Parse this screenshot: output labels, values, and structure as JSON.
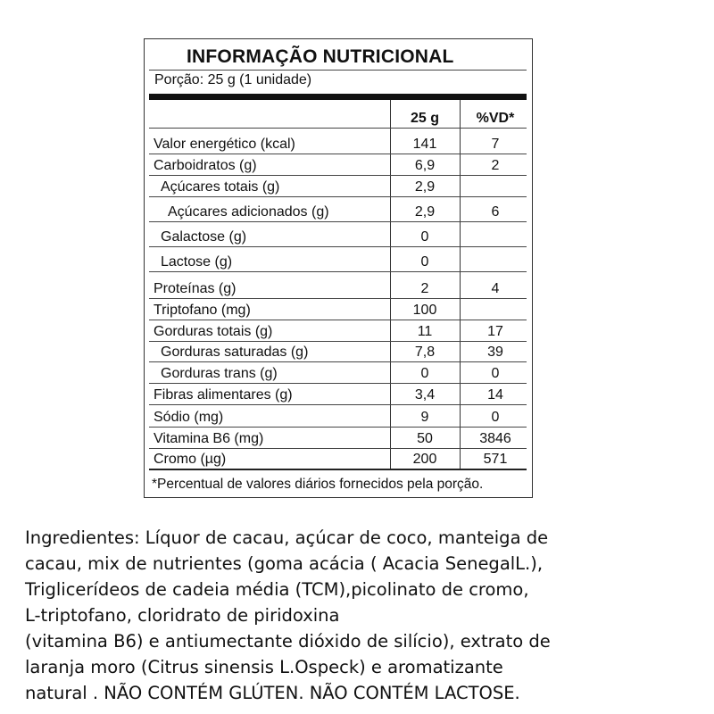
{
  "label": {
    "title": "INFORMAÇÃO NUTRICIONAL",
    "portion": "Porção: 25 g (1 unidade)",
    "header": {
      "name": "",
      "value": "25 g",
      "dv": "%VD*"
    },
    "rows": [
      {
        "name": "Valor energético (kcal)",
        "value": "141",
        "dv": "7",
        "indent": 0
      },
      {
        "name": "Carboidratos (g)",
        "value": "6,9",
        "dv": "2",
        "indent": 0
      },
      {
        "name": "Açúcares totais (g)",
        "value": "2,9",
        "dv": "",
        "indent": 1
      },
      {
        "name": "Açúcares adicionados (g)",
        "value": "2,9",
        "dv": "6",
        "indent": 2
      },
      {
        "name": "Galactose (g)",
        "value": "0",
        "dv": "",
        "indent": 1
      },
      {
        "name": "Lactose (g)",
        "value": "0",
        "dv": "",
        "indent": 1
      },
      {
        "name": "Proteínas (g)",
        "value": "2",
        "dv": "4",
        "indent": 0
      },
      {
        "name": "Triptofano (mg)",
        "value": "100",
        "dv": "",
        "indent": 0
      },
      {
        "name": "Gorduras totais (g)",
        "value": "11",
        "dv": "17",
        "indent": 0
      },
      {
        "name": "Gorduras saturadas (g)",
        "value": "7,8",
        "dv": "39",
        "indent": 1
      },
      {
        "name": "Gorduras trans (g)",
        "value": "0",
        "dv": "0",
        "indent": 1
      },
      {
        "name": "Fibras alimentares (g)",
        "value": "3,4",
        "dv": "14",
        "indent": 0
      },
      {
        "name": "Sódio (mg)",
        "value": "9",
        "dv": "0",
        "indent": 0
      },
      {
        "name": "Vitamina B6 (mg)",
        "value": "50",
        "dv": "3846",
        "indent": 0
      },
      {
        "name": "Cromo (µg)",
        "value": "200",
        "dv": "571",
        "indent": 0
      }
    ],
    "footnote": "*Percentual de valores diários fornecidos pela porção."
  },
  "ingredients": {
    "lines": [
      "Ingredientes: Líquor de cacau, açúcar de coco, manteiga de",
      "cacau, mix de nutrientes (goma acácia ( Acacia SenegalL.),",
      "Triglicerídeos de cadeia média (TCM),picolinato de cromo,",
      "L-triptofano, cloridrato de piridoxina",
      "(vitamina B6) e antiumectante dióxido de silício), extrato de",
      "laranja moro (Citrus sinensis L.Ospeck) e aromatizante",
      "natural . NÃO CONTÉM GLÚTEN. NÃO CONTÉM LACTOSE."
    ]
  }
}
